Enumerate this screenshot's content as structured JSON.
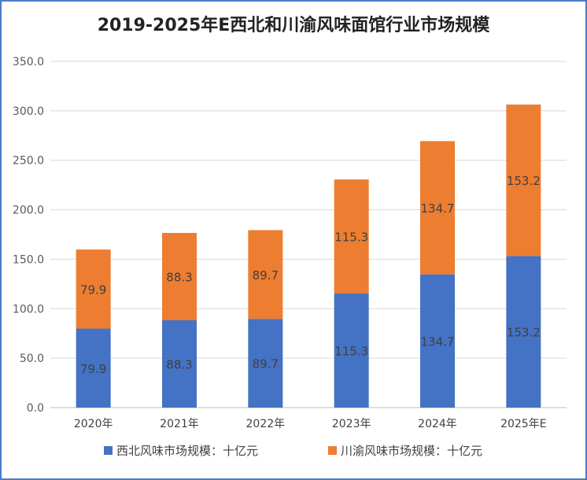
{
  "chart_data": {
    "type": "stacked-bar",
    "title": "2019-2025年E西北和川渝风味面馆行业市场规模",
    "categories": [
      "2020年",
      "2021年",
      "2022年",
      "2023年",
      "2024年",
      "2025年E"
    ],
    "series": [
      {
        "name": "西北风味市场规模：十亿元",
        "color": "#4472c4",
        "values": [
          79.9,
          88.3,
          89.7,
          115.3,
          134.7,
          153.2
        ]
      },
      {
        "name": "川渝风味市场规模：十亿元",
        "color": "#ed7d31",
        "values": [
          79.9,
          88.3,
          89.7,
          115.3,
          134.7,
          153.2
        ]
      }
    ],
    "ylim": [
      0,
      350
    ],
    "yticks": [
      "0.0",
      "50.0",
      "100.0",
      "150.0",
      "200.0",
      "250.0",
      "300.0",
      "350.0"
    ],
    "grid": true,
    "legend": "bottom"
  }
}
